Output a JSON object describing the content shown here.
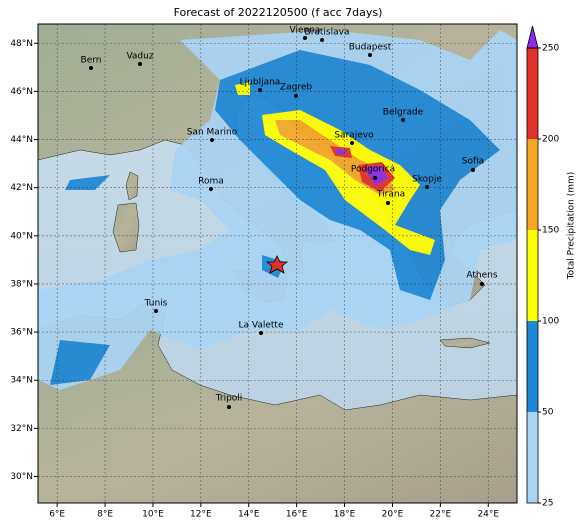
{
  "title": "Forecast of 2022120500 (f acc 7days)",
  "map": {
    "xlim": [
      5.2,
      25.2
    ],
    "ylim": [
      28.9,
      48.8
    ],
    "lon_ticks": [
      {
        "value": 6,
        "label": "6°E"
      },
      {
        "value": 8,
        "label": "8°E"
      },
      {
        "value": 10,
        "label": "10°E"
      },
      {
        "value": 12,
        "label": "12°E"
      },
      {
        "value": 14,
        "label": "14°E"
      },
      {
        "value": 16,
        "label": "16°E"
      },
      {
        "value": 18,
        "label": "18°E"
      },
      {
        "value": 20,
        "label": "20°E"
      },
      {
        "value": 22,
        "label": "22°E"
      },
      {
        "value": 24,
        "label": "24°E"
      }
    ],
    "lat_ticks": [
      {
        "value": 30,
        "label": "30°N"
      },
      {
        "value": 32,
        "label": "32°N"
      },
      {
        "value": 34,
        "label": "34°N"
      },
      {
        "value": 36,
        "label": "36°N"
      },
      {
        "value": 38,
        "label": "38°N"
      },
      {
        "value": 40,
        "label": "40°N"
      },
      {
        "value": 42,
        "label": "42°N"
      },
      {
        "value": 44,
        "label": "44°N"
      },
      {
        "value": 46,
        "label": "46°N"
      },
      {
        "value": 48,
        "label": "48°N"
      }
    ],
    "grid": true,
    "cities": [
      "Bern",
      "Vaduz",
      "Vienna",
      "Bratislava",
      "Budapest",
      "Ljubljana",
      "Zagreb",
      "San Marino",
      "Sarajevo",
      "Belgrade",
      "Podgorica",
      "Sofia",
      "Skopje",
      "Roma",
      "Tirana",
      "Athens",
      "Tunis",
      "La Valette",
      "Tripoli"
    ]
  },
  "colorbar": {
    "label": "Total Precipitation (mm)",
    "ticks": [
      25,
      50,
      100,
      150,
      200,
      250
    ],
    "colors": [
      "#a9d4f5",
      "#1e88d6",
      "#ffff00",
      "#f5a623",
      "#e2302a"
    ],
    "extend_color": "#8a2be2"
  }
}
